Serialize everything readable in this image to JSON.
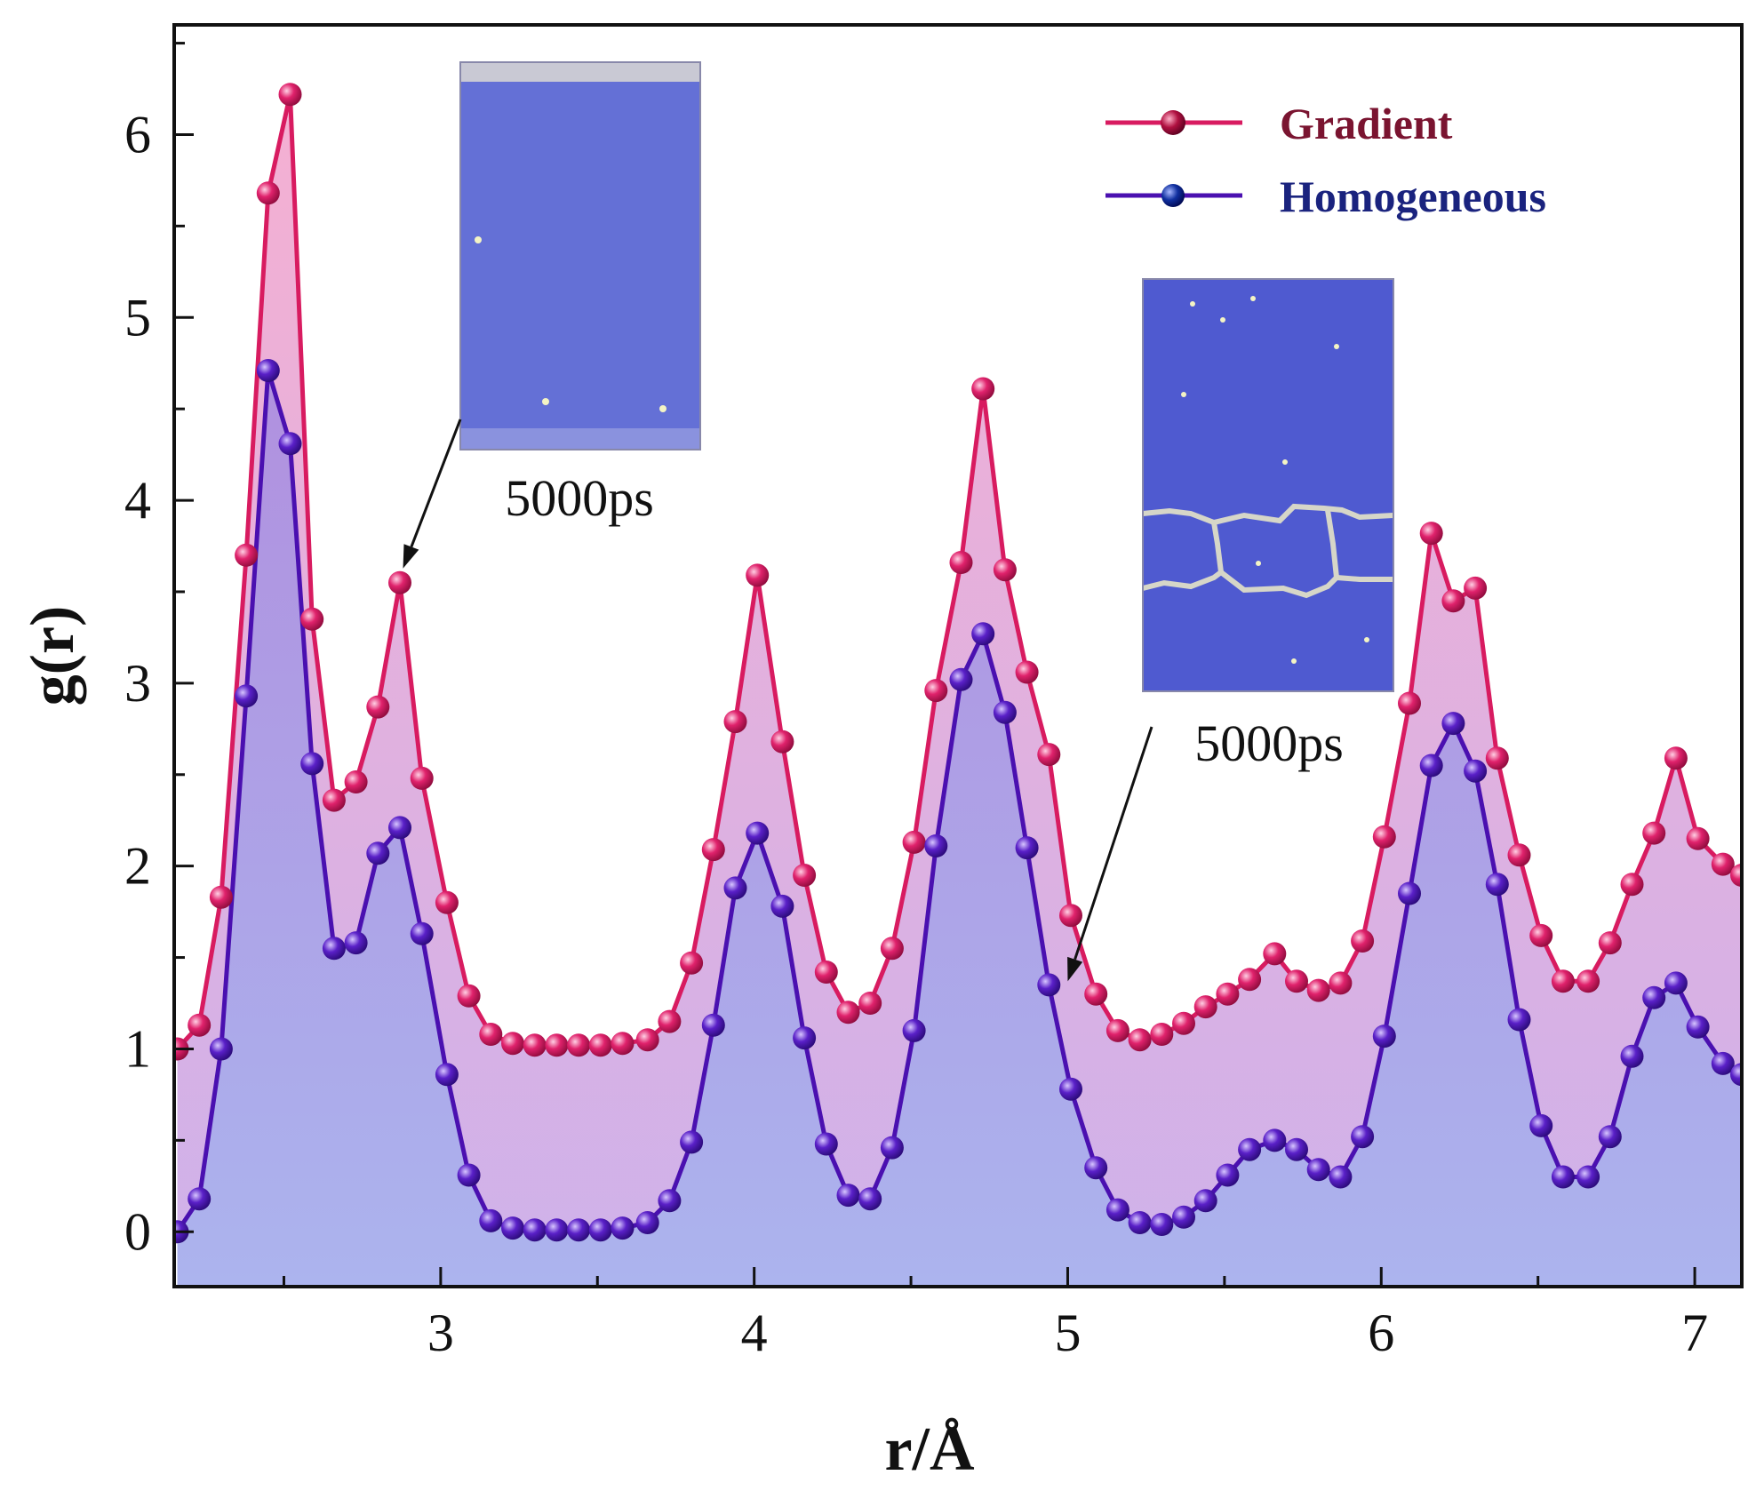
{
  "chart_data": {
    "type": "line",
    "title": "",
    "xlabel": "r/Å",
    "ylabel": "g(r)",
    "xlim": [
      2.15,
      7.15
    ],
    "ylim": [
      -0.3,
      6.6
    ],
    "grid": false,
    "x_ticks": [
      3,
      4,
      5,
      6,
      7
    ],
    "y_ticks": [
      0,
      1,
      2,
      3,
      4,
      5,
      6
    ],
    "legend": {
      "position": "top-right"
    },
    "series": [
      {
        "name": "Gradient",
        "color": "#d81b60",
        "fill": "#f2a7cf",
        "legend_color": "#7a1430",
        "x": [
          2.16,
          2.23,
          2.3,
          2.38,
          2.45,
          2.52,
          2.59,
          2.66,
          2.73,
          2.8,
          2.87,
          2.94,
          3.02,
          3.09,
          3.16,
          3.23,
          3.3,
          3.37,
          3.44,
          3.51,
          3.58,
          3.66,
          3.73,
          3.8,
          3.87,
          3.94,
          4.01,
          4.09,
          4.16,
          4.23,
          4.3,
          4.37,
          4.44,
          4.51,
          4.58,
          4.66,
          4.73,
          4.8,
          4.87,
          4.94,
          5.01,
          5.09,
          5.16,
          5.23,
          5.3,
          5.37,
          5.44,
          5.51,
          5.58,
          5.66,
          5.73,
          5.8,
          5.87,
          5.94,
          6.01,
          6.09,
          6.16,
          6.23,
          6.3,
          6.37,
          6.44,
          6.51,
          6.58,
          6.66,
          6.73,
          6.8,
          6.87,
          6.94,
          7.01,
          7.09,
          7.15
        ],
        "y": [
          1.0,
          1.13,
          1.83,
          3.7,
          5.68,
          6.22,
          3.35,
          2.36,
          2.46,
          2.87,
          3.55,
          2.48,
          1.8,
          1.29,
          1.08,
          1.03,
          1.02,
          1.02,
          1.02,
          1.02,
          1.03,
          1.05,
          1.15,
          1.47,
          2.09,
          2.79,
          3.59,
          2.68,
          1.95,
          1.42,
          1.2,
          1.25,
          1.55,
          2.13,
          2.96,
          3.66,
          4.61,
          3.62,
          3.06,
          2.61,
          1.73,
          1.3,
          1.1,
          1.05,
          1.08,
          1.14,
          1.23,
          1.3,
          1.38,
          1.52,
          1.37,
          1.32,
          1.36,
          1.59,
          2.16,
          2.89,
          3.82,
          3.45,
          3.52,
          2.59,
          2.06,
          1.62,
          1.37,
          1.37,
          1.58,
          1.9,
          2.18,
          2.59,
          2.15,
          2.01,
          1.95
        ]
      },
      {
        "name": "Homogeneous",
        "color": "#4a10b0",
        "fill": "#b8b0ee",
        "legend_color": "#1a237e",
        "x": [
          2.16,
          2.23,
          2.3,
          2.38,
          2.45,
          2.52,
          2.59,
          2.66,
          2.73,
          2.8,
          2.87,
          2.94,
          3.02,
          3.09,
          3.16,
          3.23,
          3.3,
          3.37,
          3.44,
          3.51,
          3.58,
          3.66,
          3.73,
          3.8,
          3.87,
          3.94,
          4.01,
          4.09,
          4.16,
          4.23,
          4.3,
          4.37,
          4.44,
          4.51,
          4.58,
          4.66,
          4.73,
          4.8,
          4.87,
          4.94,
          5.01,
          5.09,
          5.16,
          5.23,
          5.3,
          5.37,
          5.44,
          5.51,
          5.58,
          5.66,
          5.73,
          5.8,
          5.87,
          5.94,
          6.01,
          6.09,
          6.16,
          6.23,
          6.3,
          6.37,
          6.44,
          6.51,
          6.58,
          6.66,
          6.73,
          6.8,
          6.87,
          6.94,
          7.01,
          7.09,
          7.15
        ],
        "y": [
          0.0,
          0.18,
          1.0,
          2.93,
          4.71,
          4.31,
          2.56,
          1.55,
          1.58,
          2.07,
          2.21,
          1.63,
          0.86,
          0.31,
          0.06,
          0.02,
          0.01,
          0.01,
          0.01,
          0.01,
          0.02,
          0.05,
          0.17,
          0.49,
          1.13,
          1.88,
          2.18,
          1.78,
          1.06,
          0.48,
          0.2,
          0.18,
          0.46,
          1.1,
          2.11,
          3.02,
          3.27,
          2.84,
          2.1,
          1.35,
          0.78,
          0.35,
          0.12,
          0.05,
          0.04,
          0.08,
          0.17,
          0.31,
          0.45,
          0.5,
          0.45,
          0.34,
          0.3,
          0.52,
          1.07,
          1.85,
          2.55,
          2.78,
          2.52,
          1.9,
          1.16,
          0.58,
          0.3,
          0.3,
          0.52,
          0.96,
          1.28,
          1.36,
          1.12,
          0.92,
          0.86
        ]
      }
    ],
    "annotations": [
      {
        "text": "5000ps",
        "arrow_target": {
          "x": 2.88,
          "y": 3.55
        }
      },
      {
        "text": "5000ps",
        "arrow_target": {
          "x": 5.0,
          "y": 1.35
        }
      }
    ]
  }
}
